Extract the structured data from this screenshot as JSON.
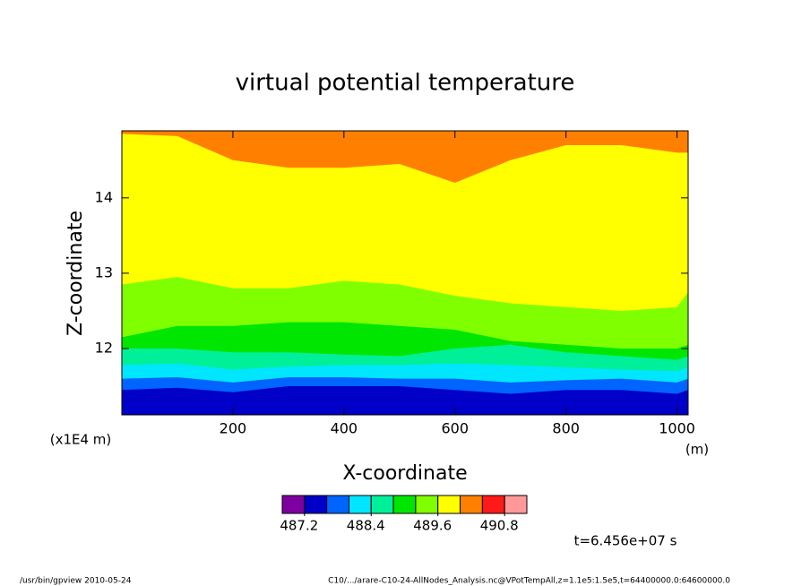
{
  "chart_data": {
    "type": "contourf",
    "title": "virtual potential temperature",
    "x_label": "X-coordinate",
    "y_label": "Z-coordinate",
    "x_unit": "(m)",
    "y_unit": "(x1E4 m)",
    "time_label": "t=6.456e+07 s",
    "footer_left": "/usr/bin/gpview   2010-05-24",
    "footer_right": "C10/.../arare-C10-24-AllNodes_Analysis.nc@VPotTempAll,z=1.1e5:1.5e5,t=64400000.0:64600000.0",
    "xlim": [
      0,
      1020
    ],
    "ylim": [
      11.12,
      14.89
    ],
    "xticks": [
      200,
      400,
      600,
      800,
      1000
    ],
    "yticks": [
      12,
      13,
      14
    ],
    "levels": [
      487.2,
      487.6,
      488.0,
      488.4,
      488.8,
      489.2,
      489.6,
      490.0,
      490.4,
      490.8
    ],
    "colorbar_ticks": [
      487.2,
      488.4,
      489.6,
      490.8
    ],
    "colors": [
      "#7f00a0",
      "#0000c8",
      "#0064ff",
      "#00e6ff",
      "#00f09a",
      "#00e600",
      "#80ff00",
      "#ffff00",
      "#ff8000",
      "#ff1a1a",
      "#ff9999"
    ],
    "x": [
      0,
      100,
      200,
      300,
      400,
      500,
      600,
      700,
      800,
      900,
      1000,
      1020
    ],
    "contours": [
      {
        "level": 487.6,
        "z": [
          11.45,
          11.48,
          11.42,
          11.5,
          11.5,
          11.5,
          11.45,
          11.4,
          11.45,
          11.45,
          11.4,
          11.45
        ]
      },
      {
        "level": 488.0,
        "z": [
          11.6,
          11.62,
          11.55,
          11.62,
          11.62,
          11.6,
          11.6,
          11.55,
          11.58,
          11.6,
          11.55,
          11.6
        ]
      },
      {
        "level": 488.4,
        "z": [
          11.78,
          11.8,
          11.72,
          11.76,
          11.78,
          11.78,
          11.8,
          11.78,
          11.75,
          11.72,
          11.7,
          11.75
        ]
      },
      {
        "level": 488.8,
        "z": [
          12.0,
          12.0,
          11.95,
          11.95,
          11.92,
          11.9,
          12.0,
          12.05,
          11.95,
          11.9,
          11.85,
          11.9
        ]
      },
      {
        "level": 489.2,
        "z": [
          12.15,
          12.3,
          12.3,
          12.35,
          12.35,
          12.3,
          12.25,
          12.1,
          12.05,
          12.0,
          12.0,
          12.05
        ]
      },
      {
        "level": 489.6,
        "z": [
          12.85,
          12.95,
          12.8,
          12.8,
          12.9,
          12.85,
          12.7,
          12.6,
          12.55,
          12.5,
          12.55,
          12.75
        ]
      },
      {
        "level": 490.0,
        "z": [
          14.85,
          14.82,
          14.5,
          14.4,
          14.4,
          14.45,
          14.2,
          14.5,
          14.7,
          14.7,
          14.6,
          14.6
        ]
      }
    ]
  }
}
